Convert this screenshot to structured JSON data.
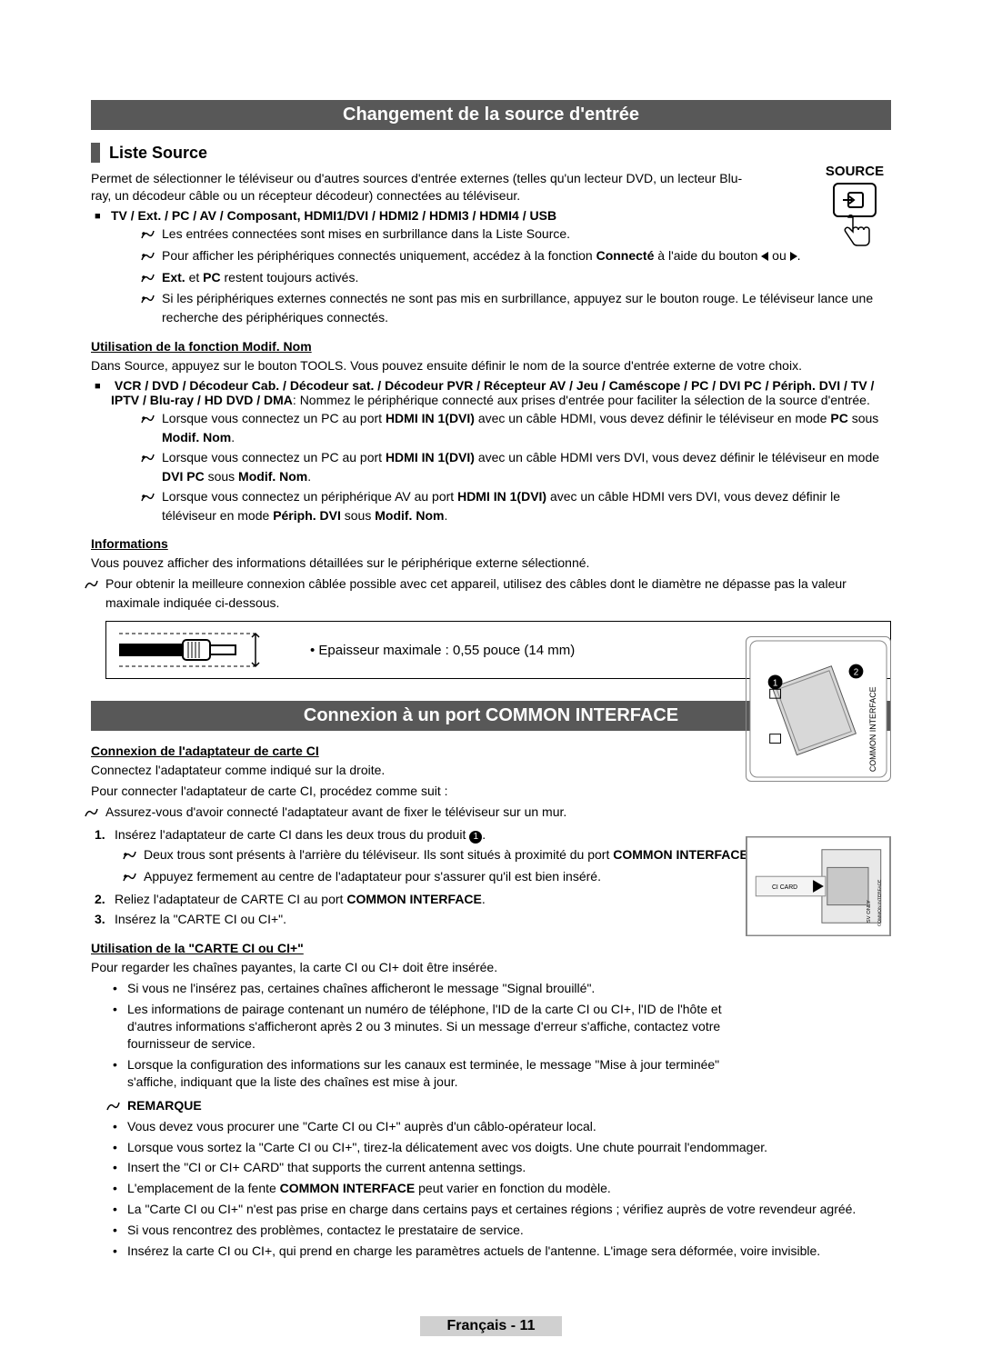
{
  "sections": {
    "s1_title": "Changement de la source d'entrée",
    "s2_title": "Connexion à un port COMMON INTERFACE"
  },
  "liste_source": {
    "heading": "Liste Source",
    "intro": "Permet de sélectionner le téléviseur ou d'autres sources d'entrée externes (telles qu'un lecteur DVD, un lecteur Blu-ray, un décodeur câble ou un récepteur décodeur) connectées au téléviseur.",
    "source_label": "SOURCE",
    "bullet_bold": "TV / Ext. / PC / AV / Composant, HDMI1/DVI / HDMI2 / HDMI3 / HDMI4 / USB",
    "notes": [
      "Les entrées connectées sont mises en surbrillance dans la Liste Source.",
      "Pour afficher les périphériques connectés uniquement, accédez à la fonction <b>Connecté</b> à l'aide du bouton <tl> ou <tr>.",
      "<b>Ext.</b> et <b>PC</b> restent toujours activés.",
      "Si les périphériques externes connectés ne sont pas mis en surbrillance, appuyez sur le bouton rouge. Le téléviseur lance une recherche des périphériques connectés."
    ]
  },
  "modif_nom": {
    "heading": "Utilisation de la fonction Modif. Nom",
    "intro": "Dans Source, appuyez sur le bouton TOOLS. Vous pouvez ensuite définir le nom de la source d'entrée externe de votre choix.",
    "bullet_bold": "VCR / DVD / Décodeur Cab. / Décodeur sat. / Décodeur PVR / Récepteur AV / Jeu / Caméscope / PC / DVI PC / Périph. DVI / TV / IPTV / Blu-ray / HD DVD / DMA",
    "bullet_tail": ": Nommez le périphérique connecté aux prises d'entrée pour faciliter la sélection de la source d'entrée.",
    "notes": [
      "Lorsque vous connectez un PC au port <b>HDMI IN 1(DVI)</b> avec un câble HDMI, vous devez définir le téléviseur en mode <b>PC</b> sous <b>Modif. Nom</b>.",
      "Lorsque vous connectez un PC au port <b>HDMI IN 1(DVI)</b> avec un câble HDMI vers DVI, vous devez définir le téléviseur en mode <b>DVI PC</b> sous <b>Modif. Nom</b>.",
      "Lorsque vous connectez un périphérique AV au port <b>HDMI IN 1(DVI)</b> avec un câble HDMI vers DVI, vous devez définir le téléviseur en mode <b>Périph. DVI</b> sous <b>Modif. Nom</b>."
    ]
  },
  "informations": {
    "heading": "Informations",
    "intro": "Vous pouvez afficher des informations détaillées sur le périphérique externe sélectionné.",
    "note": "Pour obtenir la meilleure connexion câblée possible avec cet appareil, utilisez des câbles dont le diamètre ne dépasse pas la valeur maximale indiquée ci-dessous.",
    "cable_text": "Epaisseur maximale : 0,55 pouce (14 mm)"
  },
  "ci_adapter": {
    "heading": "Connexion de l'adaptateur de carte CI",
    "line1": "Connectez l'adaptateur comme indiqué sur la droite.",
    "line2": "Pour connecter l'adaptateur de carte CI, procédez comme suit :",
    "note_pre": "Assurez-vous d'avoir connecté l'adaptateur avant de fixer le téléviseur sur un mur.",
    "step1": "Insérez l'adaptateur de carte CI dans les deux trous du produit ",
    "step1_notes": [
      "Deux trous sont présents à l'arrière du téléviseur. Ils sont situés à proximité du port <b>COMMON INTERFACE</b>.",
      "Appuyez fermement au centre de l'adaptateur pour s'assurer qu'il est bien inséré."
    ],
    "step2": "Reliez l'adaptateur de CARTE CI au port <b>COMMON INTERFACE</b>.",
    "step3": "Insérez la \"CARTE CI ou CI+\".",
    "vertical_label": "COMMON INTERFACE"
  },
  "ci_card": {
    "heading": "Utilisation de la \"CARTE CI ou CI+\"",
    "intro": "Pour regarder les chaînes payantes, la carte CI ou CI+ doit être insérée.",
    "bullets": [
      "Si vous ne l'insérez pas, certaines chaînes afficheront le message \"Signal brouillé\".",
      "Les informations de pairage contenant un numéro de téléphone, l'ID de la carte CI ou CI+, l'ID de l'hôte et d'autres informations s'afficheront après 2 ou 3 minutes. Si un message d'erreur s'affiche, contactez votre fournisseur de service.",
      "Lorsque la configuration des informations sur les canaux est terminée, le message \"Mise à jour terminée\" s'affiche, indiquant que la liste des chaînes est mise à jour."
    ],
    "remarque_label": "REMARQUE",
    "remarque": [
      "Vous devez vous procurer une \"Carte CI ou CI+\" auprès d'un câblo-opérateur local.",
      "Lorsque vous sortez la \"Carte CI ou CI+\", tirez-la délicatement avec vos doigts. Une chute pourrait l'endommager.",
      "Insert the \"CI or CI+ CARD\" that supports the current antenna settings.",
      "L'emplacement de la fente <b>COMMON INTERFACE</b> peut varier en fonction du modèle.",
      "La \"Carte CI ou CI+\" n'est pas prise en charge dans certains pays et certaines régions ; vérifiez auprès de votre revendeur agréé.",
      "Si vous rencontrez des problèmes, contactez le prestataire de service.",
      "Insérez la carte CI ou CI+, qui prend en charge les paramètres actuels de l'antenne. L'image sera déformée, voire invisible."
    ],
    "img2_labels": {
      "card": "CI CARD",
      "sv": "SV ONLY",
      "ci": "COMMON INTERFACE"
    }
  },
  "footer": "Français - 11",
  "colors": {
    "bar": "#585858",
    "text": "#000000",
    "bg": "#ffffff",
    "footer_bg": "#d0d0d0"
  }
}
